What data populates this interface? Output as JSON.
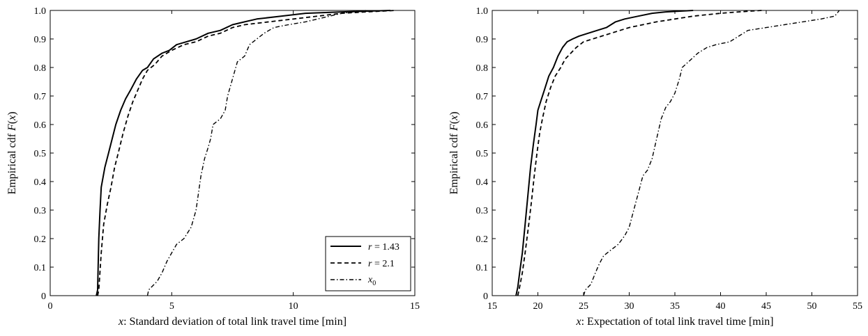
{
  "chart_data": [
    {
      "type": "line",
      "title": "",
      "xlabel_var": "x",
      "xlabel_text": ": Standard deviation of total link travel time [min]",
      "ylabel_prefix": "Empirical cdf ",
      "ylabel_F": "F",
      "ylabel_open": "(",
      "ylabel_var": "x",
      "ylabel_close": ")",
      "xlim": [
        0,
        15
      ],
      "ylim": [
        0,
        1
      ],
      "xticks": [
        0,
        5,
        10,
        15
      ],
      "yticks": [
        0,
        0.1,
        0.2,
        0.3,
        0.4,
        0.5,
        0.6,
        0.7,
        0.8,
        0.9,
        1.0
      ],
      "xtick_labels": [
        "0",
        "5",
        "10",
        "15"
      ],
      "ytick_labels": [
        "0",
        "0.1",
        "0.2",
        "0.3",
        "0.4",
        "0.5",
        "0.6",
        "0.7",
        "0.8",
        "0.9",
        "1.0"
      ],
      "grid": false,
      "legend_position": "bottom-right",
      "legend": [
        {
          "var": "r",
          "rest": " = 1.43",
          "sub": ""
        },
        {
          "var": "r",
          "rest": " = 2.1",
          "sub": ""
        },
        {
          "var": "x",
          "rest": "",
          "sub": "0"
        }
      ],
      "series": [
        {
          "style": "solid",
          "points": [
            [
              1.9,
              0
            ],
            [
              1.95,
              0.02
            ],
            [
              2.0,
              0.2
            ],
            [
              2.05,
              0.3
            ],
            [
              2.1,
              0.38
            ],
            [
              2.25,
              0.45
            ],
            [
              2.4,
              0.5
            ],
            [
              2.55,
              0.55
            ],
            [
              2.7,
              0.6
            ],
            [
              2.9,
              0.65
            ],
            [
              3.1,
              0.69
            ],
            [
              3.3,
              0.72
            ],
            [
              3.55,
              0.76
            ],
            [
              3.8,
              0.79
            ],
            [
              4.0,
              0.8
            ],
            [
              4.25,
              0.83
            ],
            [
              4.6,
              0.85
            ],
            [
              4.9,
              0.86
            ],
            [
              5.2,
              0.88
            ],
            [
              5.6,
              0.89
            ],
            [
              6.0,
              0.9
            ],
            [
              6.5,
              0.92
            ],
            [
              7.0,
              0.93
            ],
            [
              7.5,
              0.95
            ],
            [
              8.0,
              0.96
            ],
            [
              8.5,
              0.97
            ],
            [
              9.5,
              0.98
            ],
            [
              10.5,
              0.99
            ],
            [
              12.0,
              0.995
            ],
            [
              14.0,
              1.0
            ]
          ]
        },
        {
          "style": "dashed",
          "points": [
            [
              1.95,
              0
            ],
            [
              2.0,
              0.02
            ],
            [
              2.1,
              0.15
            ],
            [
              2.2,
              0.25
            ],
            [
              2.35,
              0.32
            ],
            [
              2.5,
              0.38
            ],
            [
              2.65,
              0.45
            ],
            [
              2.8,
              0.5
            ],
            [
              3.0,
              0.57
            ],
            [
              3.2,
              0.63
            ],
            [
              3.4,
              0.68
            ],
            [
              3.6,
              0.72
            ],
            [
              3.8,
              0.76
            ],
            [
              4.0,
              0.79
            ],
            [
              4.3,
              0.81
            ],
            [
              4.6,
              0.84
            ],
            [
              5.0,
              0.86
            ],
            [
              5.5,
              0.88
            ],
            [
              6.0,
              0.89
            ],
            [
              6.5,
              0.91
            ],
            [
              7.0,
              0.92
            ],
            [
              7.5,
              0.94
            ],
            [
              8.0,
              0.95
            ],
            [
              9.0,
              0.96
            ],
            [
              10.0,
              0.97
            ],
            [
              11.0,
              0.98
            ],
            [
              12.0,
              0.99
            ],
            [
              13.0,
              0.995
            ],
            [
              14.2,
              1.0
            ]
          ]
        },
        {
          "style": "dashdot",
          "points": [
            [
              4.0,
              0
            ],
            [
              4.05,
              0.02
            ],
            [
              4.4,
              0.05
            ],
            [
              4.6,
              0.08
            ],
            [
              4.8,
              0.12
            ],
            [
              5.0,
              0.15
            ],
            [
              5.2,
              0.18
            ],
            [
              5.5,
              0.2
            ],
            [
              5.8,
              0.24
            ],
            [
              6.0,
              0.3
            ],
            [
              6.1,
              0.36
            ],
            [
              6.2,
              0.42
            ],
            [
              6.35,
              0.48
            ],
            [
              6.5,
              0.52
            ],
            [
              6.6,
              0.55
            ],
            [
              6.7,
              0.6
            ],
            [
              7.0,
              0.62
            ],
            [
              7.2,
              0.65
            ],
            [
              7.3,
              0.7
            ],
            [
              7.5,
              0.76
            ],
            [
              7.7,
              0.82
            ],
            [
              8.0,
              0.84
            ],
            [
              8.2,
              0.88
            ],
            [
              8.5,
              0.9
            ],
            [
              8.8,
              0.92
            ],
            [
              9.2,
              0.94
            ],
            [
              9.8,
              0.95
            ],
            [
              10.5,
              0.96
            ],
            [
              11.0,
              0.97
            ],
            [
              11.5,
              0.98
            ],
            [
              12.0,
              0.99
            ],
            [
              13.0,
              1.0
            ]
          ]
        }
      ]
    },
    {
      "type": "line",
      "title": "",
      "xlabel_var": "x",
      "xlabel_text": ": Expectation of total link travel time [min]",
      "ylabel_prefix": "Empirical cdf ",
      "ylabel_F": "F",
      "ylabel_open": "(",
      "ylabel_var": "x",
      "ylabel_close": ")",
      "xlim": [
        15,
        55
      ],
      "ylim": [
        0,
        1
      ],
      "xticks": [
        15,
        20,
        25,
        30,
        35,
        40,
        45,
        50,
        55
      ],
      "yticks": [
        0,
        0.1,
        0.2,
        0.3,
        0.4,
        0.5,
        0.6,
        0.7,
        0.8,
        0.9,
        1.0
      ],
      "xtick_labels": [
        "15",
        "20",
        "25",
        "30",
        "35",
        "40",
        "45",
        "50",
        "55"
      ],
      "ytick_labels": [
        "0",
        "0.1",
        "0.2",
        "0.3",
        "0.4",
        "0.5",
        "0.6",
        "0.7",
        "0.8",
        "0.9",
        "1.0"
      ],
      "grid": false,
      "legend_position": "",
      "legend": [],
      "series": [
        {
          "style": "solid",
          "points": [
            [
              17.6,
              0
            ],
            [
              17.8,
              0.03
            ],
            [
              18.0,
              0.08
            ],
            [
              18.3,
              0.15
            ],
            [
              18.6,
              0.25
            ],
            [
              18.9,
              0.35
            ],
            [
              19.2,
              0.45
            ],
            [
              19.5,
              0.53
            ],
            [
              19.8,
              0.6
            ],
            [
              20.0,
              0.65
            ],
            [
              20.3,
              0.68
            ],
            [
              20.7,
              0.72
            ],
            [
              21.2,
              0.77
            ],
            [
              21.7,
              0.8
            ],
            [
              22.2,
              0.84
            ],
            [
              22.7,
              0.87
            ],
            [
              23.2,
              0.89
            ],
            [
              23.8,
              0.9
            ],
            [
              24.5,
              0.91
            ],
            [
              25.5,
              0.92
            ],
            [
              26.5,
              0.93
            ],
            [
              27.5,
              0.94
            ],
            [
              28.5,
              0.96
            ],
            [
              29.5,
              0.97
            ],
            [
              31.0,
              0.98
            ],
            [
              32.5,
              0.99
            ],
            [
              34.0,
              0.995
            ],
            [
              37.0,
              1.0
            ]
          ]
        },
        {
          "style": "dashed",
          "points": [
            [
              17.8,
              0
            ],
            [
              18.0,
              0.03
            ],
            [
              18.3,
              0.08
            ],
            [
              18.6,
              0.15
            ],
            [
              19.0,
              0.25
            ],
            [
              19.3,
              0.33
            ],
            [
              19.6,
              0.42
            ],
            [
              19.9,
              0.5
            ],
            [
              20.2,
              0.57
            ],
            [
              20.5,
              0.62
            ],
            [
              20.9,
              0.68
            ],
            [
              21.4,
              0.73
            ],
            [
              21.9,
              0.77
            ],
            [
              22.5,
              0.8
            ],
            [
              23.0,
              0.83
            ],
            [
              23.6,
              0.85
            ],
            [
              24.2,
              0.87
            ],
            [
              25.0,
              0.89
            ],
            [
              26.0,
              0.9
            ],
            [
              27.0,
              0.91
            ],
            [
              28.0,
              0.92
            ],
            [
              29.0,
              0.93
            ],
            [
              30.0,
              0.94
            ],
            [
              31.5,
              0.95
            ],
            [
              33.0,
              0.96
            ],
            [
              35.0,
              0.97
            ],
            [
              37.0,
              0.98
            ],
            [
              40.0,
              0.99
            ],
            [
              42.0,
              0.995
            ],
            [
              44.5,
              1.0
            ]
          ]
        },
        {
          "style": "dashdot",
          "points": [
            [
              25.0,
              0
            ],
            [
              25.2,
              0.02
            ],
            [
              25.8,
              0.04
            ],
            [
              26.3,
              0.08
            ],
            [
              26.7,
              0.11
            ],
            [
              27.2,
              0.14
            ],
            [
              28.0,
              0.16
            ],
            [
              28.8,
              0.18
            ],
            [
              29.5,
              0.21
            ],
            [
              30.0,
              0.24
            ],
            [
              30.5,
              0.3
            ],
            [
              31.0,
              0.36
            ],
            [
              31.5,
              0.42
            ],
            [
              32.0,
              0.44
            ],
            [
              32.5,
              0.48
            ],
            [
              33.0,
              0.55
            ],
            [
              33.5,
              0.62
            ],
            [
              34.0,
              0.66
            ],
            [
              34.5,
              0.68
            ],
            [
              35.0,
              0.71
            ],
            [
              35.5,
              0.76
            ],
            [
              35.8,
              0.8
            ],
            [
              36.5,
              0.82
            ],
            [
              37.5,
              0.85
            ],
            [
              38.5,
              0.87
            ],
            [
              39.5,
              0.88
            ],
            [
              41.0,
              0.89
            ],
            [
              42.0,
              0.91
            ],
            [
              43.0,
              0.93
            ],
            [
              45.0,
              0.94
            ],
            [
              47.0,
              0.95
            ],
            [
              49.0,
              0.96
            ],
            [
              51.0,
              0.97
            ],
            [
              52.5,
              0.98
            ],
            [
              53.0,
              1.0
            ]
          ]
        }
      ]
    }
  ]
}
